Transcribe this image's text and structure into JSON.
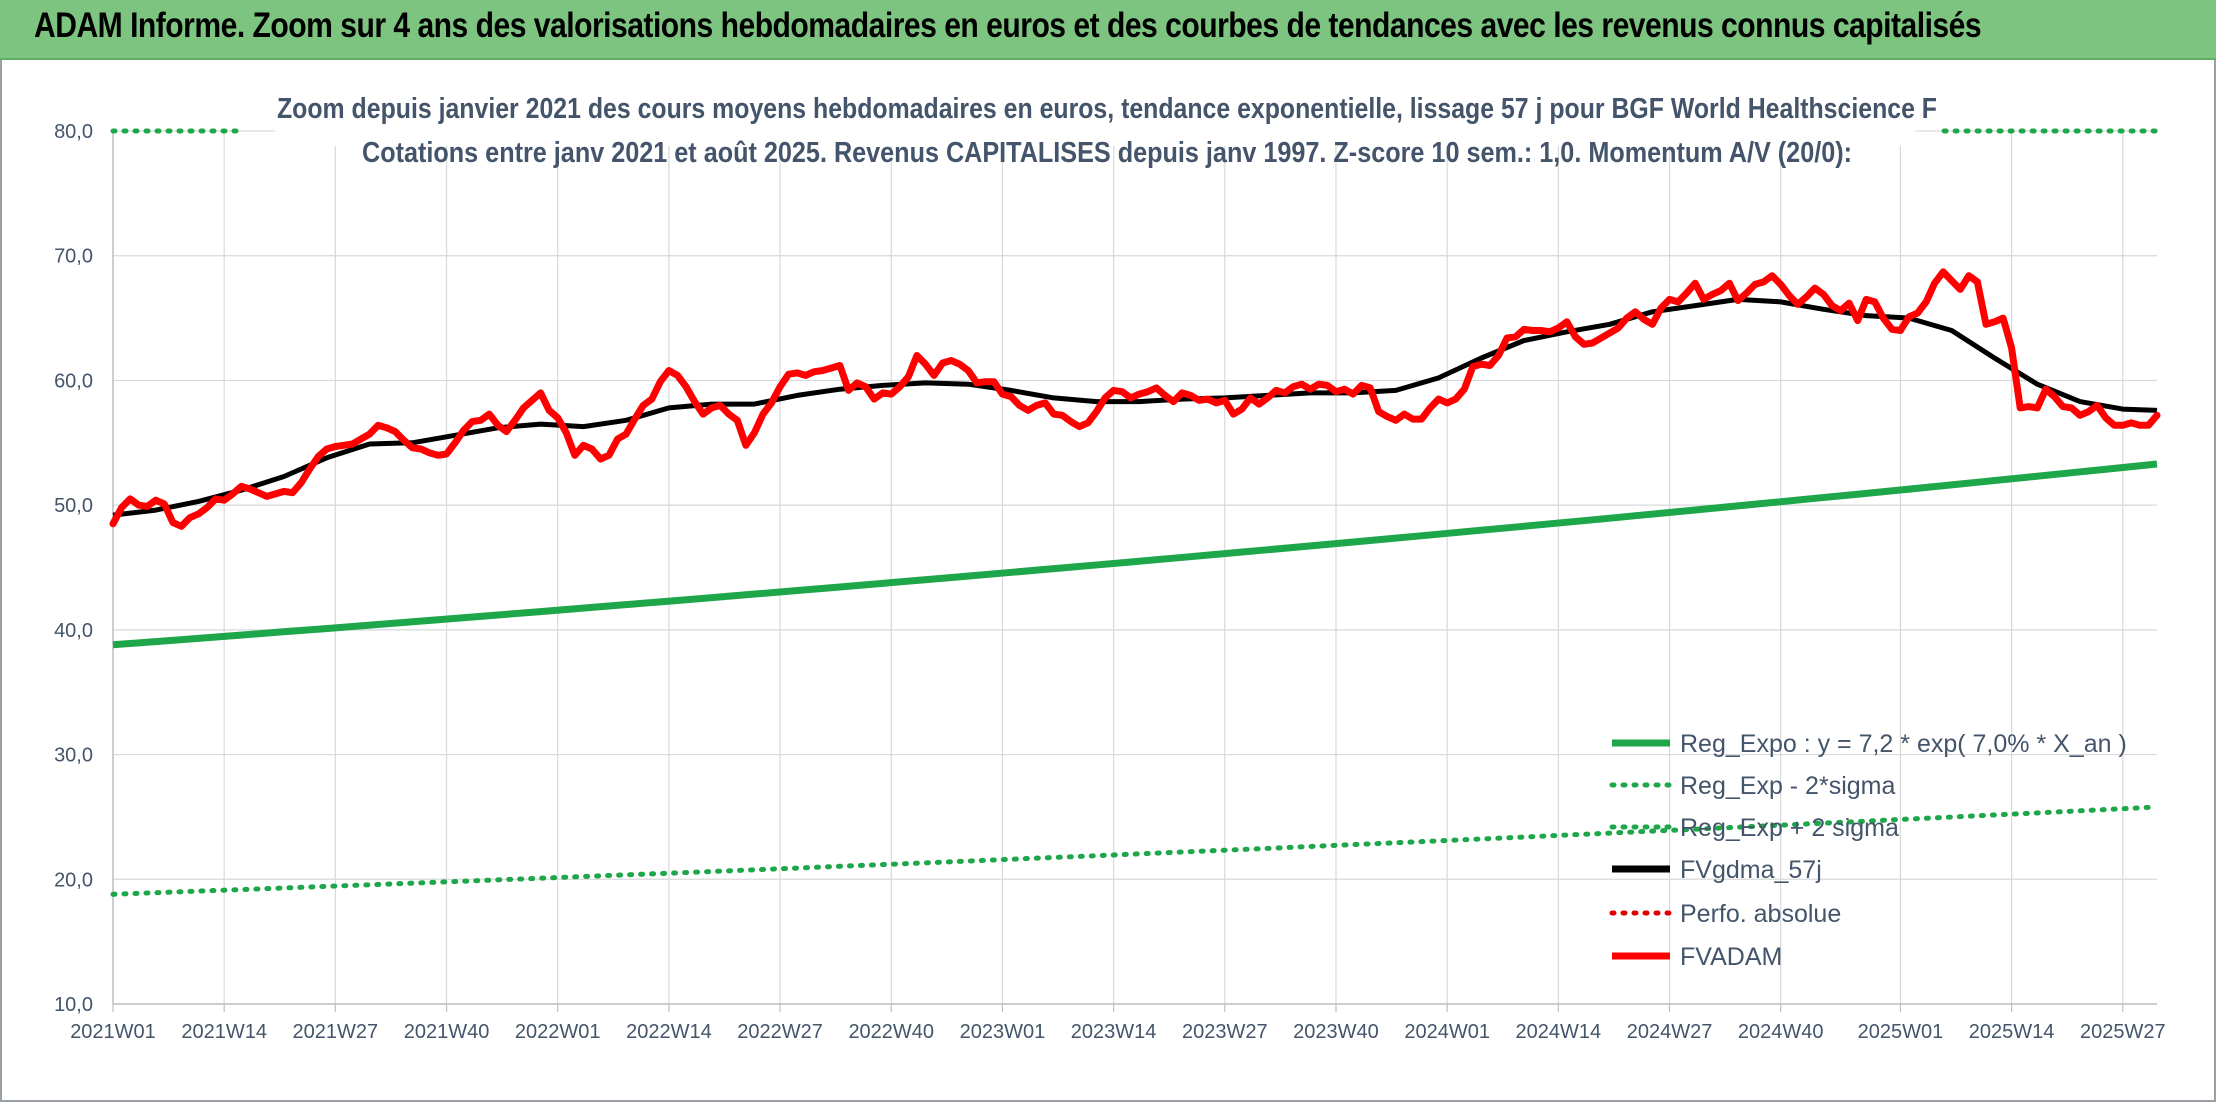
{
  "banner": {
    "title": "ADAM Informe. Zoom sur 4 ans des valorisations hebdomadaires en euros et des courbes de tendances avec les revenus connus capitalisés"
  },
  "chart_data": {
    "type": "line",
    "subtitle_1": "Zoom depuis janvier 2021 des cours moyens hebdomadaires en euros, tendance exponentielle, lissage 57 j pour BGF World Healthscience F",
    "subtitle_2": "Cotations entre janv 2021 et août 2025. Revenus CAPITALISES depuis janv 1997. Z-score 10 sem.: 1,0. Momentum A/V (20/0):",
    "ylim": [
      10,
      80
    ],
    "y_ticks": [
      "80,0",
      "70,0",
      "60,0",
      "50,0",
      "40,0",
      "30,0",
      "20,0",
      "10,0"
    ],
    "x_ticks": [
      "2021W01",
      "2021W14",
      "2021W27",
      "2021W40",
      "2022W01",
      "2022W14",
      "2022W27",
      "2022W40",
      "2023W01",
      "2023W14",
      "2023W27",
      "2023W40",
      "2024W01",
      "2024W14",
      "2024W27",
      "2024W40",
      "2025W01",
      "2025W14",
      "2025W27"
    ],
    "x_tick_weeks": [
      0,
      13,
      26,
      39,
      52,
      65,
      78,
      91,
      104,
      117,
      130,
      143,
      156,
      169,
      182,
      195,
      209,
      222,
      235
    ],
    "x_range_weeks": [
      0,
      239
    ],
    "grid": true,
    "legend_position": "bottom-right",
    "series": [
      {
        "name": "Reg_Expo : y = 7,2 * exp( 7,0% *  X_an )",
        "color": "#1ea64a",
        "style": "solid",
        "start_week": 0,
        "end_week": 239,
        "start_value": 38.8,
        "end_value": 53.3
      },
      {
        "name": "Reg_Exp - 2*sigma",
        "color": "#1ea64a",
        "style": "dotted",
        "start_week": 0,
        "end_week": 239,
        "start_value": 18.8,
        "end_value": 25.8
      },
      {
        "name": "Reg_Exp + 2 sigma",
        "color": "#1ea64a",
        "style": "dotted",
        "start_week": 0,
        "end_week": 239,
        "start_value": 80.0,
        "end_value": 80.0
      },
      {
        "name": "FVgdma_57j",
        "color": "#000000",
        "style": "solid",
        "points": [
          [
            0,
            49.2
          ],
          [
            5,
            49.6
          ],
          [
            10,
            50.3
          ],
          [
            15,
            51.2
          ],
          [
            20,
            52.3
          ],
          [
            25,
            53.8
          ],
          [
            30,
            54.9
          ],
          [
            35,
            55.0
          ],
          [
            40,
            55.6
          ],
          [
            45,
            56.2
          ],
          [
            50,
            56.5
          ],
          [
            55,
            56.3
          ],
          [
            60,
            56.8
          ],
          [
            65,
            57.8
          ],
          [
            70,
            58.1
          ],
          [
            75,
            58.1
          ],
          [
            80,
            58.8
          ],
          [
            85,
            59.3
          ],
          [
            90,
            59.6
          ],
          [
            95,
            59.8
          ],
          [
            100,
            59.7
          ],
          [
            105,
            59.2
          ],
          [
            110,
            58.6
          ],
          [
            115,
            58.3
          ],
          [
            120,
            58.3
          ],
          [
            125,
            58.5
          ],
          [
            130,
            58.6
          ],
          [
            135,
            58.8
          ],
          [
            140,
            59.0
          ],
          [
            145,
            59.0
          ],
          [
            150,
            59.2
          ],
          [
            155,
            60.2
          ],
          [
            160,
            61.8
          ],
          [
            165,
            63.2
          ],
          [
            170,
            63.9
          ],
          [
            175,
            64.5
          ],
          [
            180,
            65.5
          ],
          [
            185,
            66.0
          ],
          [
            190,
            66.5
          ],
          [
            195,
            66.3
          ],
          [
            200,
            65.7
          ],
          [
            205,
            65.2
          ],
          [
            210,
            65.0
          ],
          [
            215,
            64.0
          ],
          [
            220,
            61.8
          ],
          [
            225,
            59.7
          ],
          [
            230,
            58.3
          ],
          [
            235,
            57.7
          ],
          [
            239,
            57.6
          ]
        ]
      },
      {
        "name": "Perfo. absolue",
        "color": "#e00000",
        "style": "dotted"
      },
      {
        "name": "FVADAM",
        "color": "#ff0000",
        "style": "solid",
        "points": [
          [
            0,
            48.5
          ],
          [
            1,
            49.8
          ],
          [
            2,
            50.5
          ],
          [
            3,
            50.0
          ],
          [
            4,
            49.9
          ],
          [
            5,
            50.4
          ],
          [
            6,
            50.1
          ],
          [
            7,
            48.6
          ],
          [
            8,
            48.3
          ],
          [
            9,
            49.0
          ],
          [
            10,
            49.3
          ],
          [
            11,
            49.8
          ],
          [
            12,
            50.5
          ],
          [
            13,
            50.4
          ],
          [
            14,
            50.9
          ],
          [
            15,
            51.5
          ],
          [
            16,
            51.3
          ],
          [
            17,
            51.0
          ],
          [
            18,
            50.7
          ],
          [
            19,
            50.9
          ],
          [
            20,
            51.1
          ],
          [
            21,
            51.0
          ],
          [
            22,
            51.8
          ],
          [
            23,
            52.9
          ],
          [
            24,
            53.9
          ],
          [
            25,
            54.5
          ],
          [
            26,
            54.7
          ],
          [
            27,
            54.8
          ],
          [
            28,
            54.9
          ],
          [
            29,
            55.3
          ],
          [
            30,
            55.7
          ],
          [
            31,
            56.4
          ],
          [
            32,
            56.2
          ],
          [
            33,
            55.9
          ],
          [
            34,
            55.2
          ],
          [
            35,
            54.6
          ],
          [
            36,
            54.5
          ],
          [
            37,
            54.2
          ],
          [
            38,
            54.0
          ],
          [
            39,
            54.1
          ],
          [
            40,
            55.0
          ],
          [
            41,
            56.0
          ],
          [
            42,
            56.7
          ],
          [
            43,
            56.8
          ],
          [
            44,
            57.3
          ],
          [
            45,
            56.4
          ],
          [
            46,
            55.9
          ],
          [
            47,
            56.8
          ],
          [
            48,
            57.8
          ],
          [
            49,
            58.4
          ],
          [
            50,
            59.0
          ],
          [
            51,
            57.6
          ],
          [
            52,
            57.0
          ],
          [
            53,
            55.8
          ],
          [
            54,
            54.0
          ],
          [
            55,
            54.8
          ],
          [
            56,
            54.5
          ],
          [
            57,
            53.7
          ],
          [
            58,
            54.0
          ],
          [
            59,
            55.3
          ],
          [
            60,
            55.7
          ],
          [
            61,
            56.9
          ],
          [
            62,
            58.0
          ],
          [
            63,
            58.5
          ],
          [
            64,
            59.9
          ],
          [
            65,
            60.8
          ],
          [
            66,
            60.4
          ],
          [
            67,
            59.5
          ],
          [
            68,
            58.3
          ],
          [
            69,
            57.3
          ],
          [
            70,
            57.8
          ],
          [
            71,
            58.0
          ],
          [
            72,
            57.3
          ],
          [
            73,
            56.8
          ],
          [
            74,
            54.8
          ],
          [
            75,
            55.8
          ],
          [
            76,
            57.3
          ],
          [
            77,
            58.2
          ],
          [
            78,
            59.5
          ],
          [
            79,
            60.5
          ],
          [
            80,
            60.6
          ],
          [
            81,
            60.4
          ],
          [
            82,
            60.7
          ],
          [
            83,
            60.8
          ],
          [
            84,
            61.0
          ],
          [
            85,
            61.2
          ],
          [
            86,
            59.2
          ],
          [
            87,
            59.8
          ],
          [
            88,
            59.5
          ],
          [
            89,
            58.5
          ],
          [
            90,
            59.0
          ],
          [
            91,
            58.9
          ],
          [
            92,
            59.5
          ],
          [
            93,
            60.3
          ],
          [
            94,
            62.0
          ],
          [
            95,
            61.3
          ],
          [
            96,
            60.4
          ],
          [
            97,
            61.4
          ],
          [
            98,
            61.6
          ],
          [
            99,
            61.3
          ],
          [
            100,
            60.8
          ],
          [
            101,
            59.8
          ],
          [
            102,
            59.9
          ],
          [
            103,
            59.9
          ],
          [
            104,
            58.9
          ],
          [
            105,
            58.7
          ],
          [
            106,
            58.0
          ],
          [
            107,
            57.6
          ],
          [
            108,
            58.0
          ],
          [
            109,
            58.2
          ],
          [
            110,
            57.3
          ],
          [
            111,
            57.2
          ],
          [
            112,
            56.7
          ],
          [
            113,
            56.3
          ],
          [
            114,
            56.6
          ],
          [
            115,
            57.5
          ],
          [
            116,
            58.6
          ],
          [
            117,
            59.2
          ],
          [
            118,
            59.1
          ],
          [
            119,
            58.6
          ],
          [
            120,
            58.9
          ],
          [
            121,
            59.1
          ],
          [
            122,
            59.4
          ],
          [
            123,
            58.8
          ],
          [
            124,
            58.3
          ],
          [
            125,
            59.0
          ],
          [
            126,
            58.8
          ],
          [
            127,
            58.4
          ],
          [
            128,
            58.5
          ],
          [
            129,
            58.2
          ],
          [
            130,
            58.4
          ],
          [
            131,
            57.3
          ],
          [
            132,
            57.7
          ],
          [
            133,
            58.6
          ],
          [
            134,
            58.1
          ],
          [
            135,
            58.6
          ],
          [
            136,
            59.2
          ],
          [
            137,
            59.0
          ],
          [
            138,
            59.5
          ],
          [
            139,
            59.7
          ],
          [
            140,
            59.3
          ],
          [
            141,
            59.7
          ],
          [
            142,
            59.6
          ],
          [
            143,
            59.1
          ],
          [
            144,
            59.3
          ],
          [
            145,
            58.9
          ],
          [
            146,
            59.6
          ],
          [
            147,
            59.4
          ],
          [
            148,
            57.5
          ],
          [
            149,
            57.1
          ],
          [
            150,
            56.8
          ],
          [
            151,
            57.3
          ],
          [
            152,
            56.9
          ],
          [
            153,
            56.9
          ],
          [
            154,
            57.8
          ],
          [
            155,
            58.5
          ],
          [
            156,
            58.2
          ],
          [
            157,
            58.5
          ],
          [
            158,
            59.3
          ],
          [
            159,
            61.1
          ],
          [
            160,
            61.3
          ],
          [
            161,
            61.2
          ],
          [
            162,
            62.0
          ],
          [
            163,
            63.4
          ],
          [
            164,
            63.5
          ],
          [
            165,
            64.1
          ],
          [
            166,
            64.0
          ],
          [
            167,
            64.0
          ],
          [
            168,
            63.9
          ],
          [
            169,
            64.2
          ],
          [
            170,
            64.7
          ],
          [
            171,
            63.5
          ],
          [
            172,
            62.9
          ],
          [
            173,
            63.0
          ],
          [
            174,
            63.4
          ],
          [
            175,
            63.8
          ],
          [
            176,
            64.2
          ],
          [
            177,
            65.0
          ],
          [
            178,
            65.5
          ],
          [
            179,
            64.9
          ],
          [
            180,
            64.5
          ],
          [
            181,
            65.8
          ],
          [
            182,
            66.5
          ],
          [
            183,
            66.3
          ],
          [
            184,
            67.0
          ],
          [
            185,
            67.8
          ],
          [
            186,
            66.5
          ],
          [
            187,
            66.9
          ],
          [
            188,
            67.2
          ],
          [
            189,
            67.8
          ],
          [
            190,
            66.4
          ],
          [
            191,
            67.0
          ],
          [
            192,
            67.7
          ],
          [
            193,
            67.9
          ],
          [
            194,
            68.4
          ],
          [
            195,
            67.7
          ],
          [
            196,
            66.8
          ],
          [
            197,
            66.1
          ],
          [
            198,
            66.7
          ],
          [
            199,
            67.4
          ],
          [
            200,
            66.9
          ],
          [
            201,
            66.0
          ],
          [
            202,
            65.6
          ],
          [
            203,
            66.2
          ],
          [
            204,
            64.8
          ],
          [
            205,
            66.5
          ],
          [
            206,
            66.3
          ],
          [
            207,
            65.0
          ],
          [
            208,
            64.1
          ],
          [
            209,
            64.0
          ],
          [
            210,
            65.1
          ],
          [
            211,
            65.4
          ],
          [
            212,
            66.3
          ],
          [
            213,
            67.8
          ],
          [
            214,
            68.7
          ],
          [
            215,
            68.0
          ],
          [
            216,
            67.3
          ],
          [
            217,
            68.4
          ],
          [
            218,
            67.9
          ],
          [
            219,
            64.5
          ],
          [
            220,
            64.7
          ],
          [
            221,
            65.0
          ],
          [
            222,
            62.6
          ],
          [
            223,
            57.8
          ],
          [
            224,
            57.9
          ],
          [
            225,
            57.8
          ],
          [
            226,
            59.3
          ],
          [
            227,
            58.7
          ],
          [
            228,
            57.9
          ],
          [
            229,
            57.8
          ],
          [
            230,
            57.2
          ],
          [
            231,
            57.5
          ],
          [
            232,
            58.0
          ],
          [
            233,
            57.0
          ],
          [
            234,
            56.4
          ],
          [
            235,
            56.4
          ],
          [
            236,
            56.6
          ],
          [
            237,
            56.4
          ],
          [
            238,
            56.4
          ],
          [
            239,
            57.2
          ]
        ]
      }
    ]
  }
}
